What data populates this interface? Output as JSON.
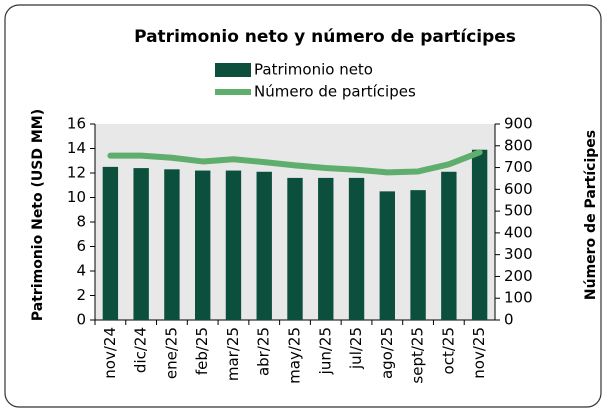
{
  "chart_data": {
    "type": "bar-line",
    "title": "Patrimonio neto y número de partícipes",
    "categories": [
      "nov/24",
      "dic/24",
      "ene/25",
      "feb/25",
      "mar/25",
      "abr/25",
      "may/25",
      "jun/25",
      "jul/25",
      "ago/25",
      "sept/25",
      "oct/25",
      "nov/25"
    ],
    "series": [
      {
        "name": "Patrimonio neto",
        "type": "bar",
        "color": "#0b4f3c",
        "values": [
          12.5,
          12.4,
          12.3,
          12.2,
          12.2,
          12.1,
          11.6,
          11.6,
          11.6,
          10.5,
          10.6,
          12.1,
          13.9
        ]
      },
      {
        "name": "Número de partícipes",
        "type": "line",
        "axis": "y2",
        "color": "#5fae6e",
        "values": [
          755,
          755,
          745,
          728,
          738,
          725,
          710,
          698,
          690,
          678,
          682,
          715,
          770
        ]
      }
    ],
    "ylabel": "Patrimonio Neto (USD MM)",
    "y2label": "Número de Partícipes",
    "ylim": [
      0,
      16
    ],
    "yticks": [
      0,
      2,
      4,
      6,
      8,
      10,
      12,
      14,
      16
    ],
    "y2lim": [
      0,
      900
    ],
    "y2ticks": [
      0,
      100,
      200,
      300,
      400,
      500,
      600,
      700,
      800,
      900
    ]
  }
}
